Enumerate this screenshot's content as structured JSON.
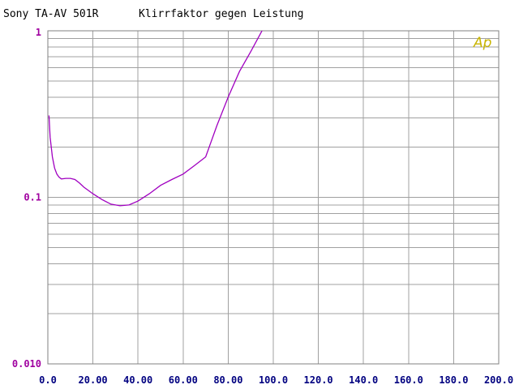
{
  "header": {
    "device": "Sony TA-AV 501R",
    "measurement": "Klirrfaktor  gegen  Leistung"
  },
  "logo": {
    "text": "Ap",
    "color": "#c8b400"
  },
  "colors": {
    "curve": "#a000c0",
    "y_ticks": "#a000a0",
    "x_ticks": "#000080",
    "grid": "#a0a0a0",
    "frame": "#808080"
  },
  "chart_data": {
    "type": "line",
    "title": "",
    "xlabel": "",
    "ylabel": "",
    "xlim": [
      0,
      200
    ],
    "ylim": [
      0.01,
      1
    ],
    "yscale": "log",
    "grid": true,
    "x_ticks": [
      "0.0",
      "20.00",
      "40.00",
      "60.00",
      "80.00",
      "100.0",
      "120.0",
      "140.0",
      "160.0",
      "180.0",
      "200.0"
    ],
    "y_ticks": [
      "1",
      "0.1",
      "0.010"
    ],
    "series": [
      {
        "x": [
          0.5,
          1,
          2,
          3,
          4,
          5,
          6,
          8,
          10,
          12,
          14,
          16,
          18,
          20,
          24,
          28,
          32,
          36,
          40,
          45,
          50,
          55,
          60,
          65,
          70,
          75,
          80,
          85,
          90,
          95
        ],
        "y": [
          0.31,
          0.23,
          0.175,
          0.15,
          0.138,
          0.132,
          0.129,
          0.13,
          0.13,
          0.128,
          0.122,
          0.115,
          0.11,
          0.105,
          0.097,
          0.091,
          0.089,
          0.09,
          0.095,
          0.105,
          0.118,
          0.128,
          0.138,
          0.155,
          0.175,
          0.27,
          0.4,
          0.57,
          0.75,
          1.0
        ]
      }
    ]
  }
}
